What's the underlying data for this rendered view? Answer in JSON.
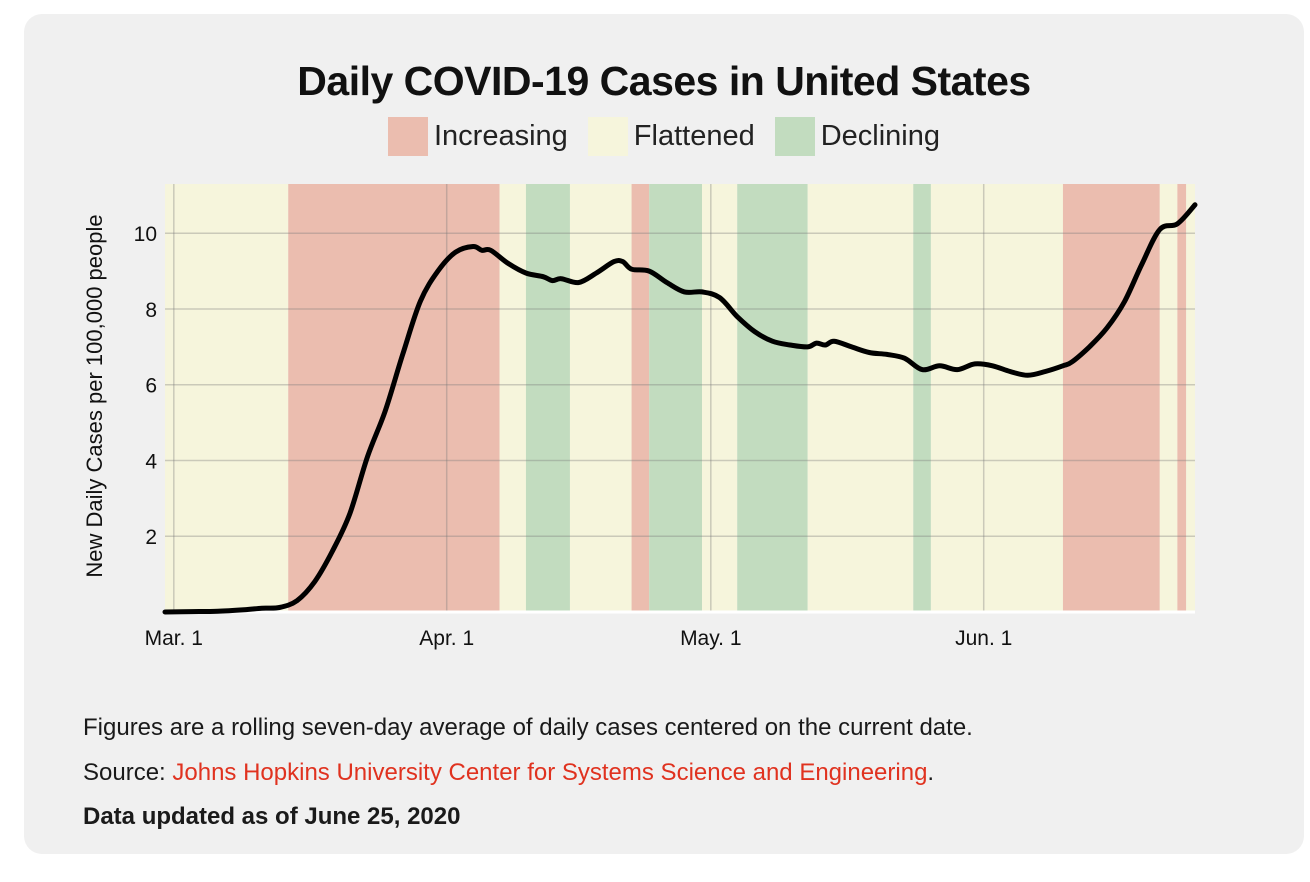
{
  "chart_data": {
    "type": "line",
    "title": "Daily COVID-19 Cases in United States",
    "ylabel": "New Daily Cases per 100,000 people",
    "xlabel": "",
    "x_range": [
      "2020-02-29",
      "2020-06-25"
    ],
    "ylim": [
      0,
      11.3
    ],
    "yticks": [
      2,
      4,
      6,
      8,
      10
    ],
    "xticks": [
      {
        "date": "2020-03-01",
        "label": "Mar. 1"
      },
      {
        "date": "2020-04-01",
        "label": "Apr. 1"
      },
      {
        "date": "2020-05-01",
        "label": "May. 1"
      },
      {
        "date": "2020-06-01",
        "label": "Jun. 1"
      }
    ],
    "grid": true,
    "legend": {
      "position": "top-center",
      "entries": [
        {
          "label": "Increasing",
          "color": "#ebbdaf"
        },
        {
          "label": "Flattened",
          "color": "#f6f5dc"
        },
        {
          "label": "Declining",
          "color": "#c2dcbf"
        }
      ]
    },
    "line_color": "#000000",
    "trend_bands": [
      {
        "start": "2020-02-29",
        "end": "2020-03-14",
        "trend": "Flattened"
      },
      {
        "start": "2020-03-14",
        "end": "2020-04-07",
        "trend": "Increasing"
      },
      {
        "start": "2020-04-07",
        "end": "2020-04-10",
        "trend": "Flattened"
      },
      {
        "start": "2020-04-10",
        "end": "2020-04-15",
        "trend": "Declining"
      },
      {
        "start": "2020-04-15",
        "end": "2020-04-22",
        "trend": "Flattened"
      },
      {
        "start": "2020-04-22",
        "end": "2020-04-24",
        "trend": "Increasing"
      },
      {
        "start": "2020-04-24",
        "end": "2020-04-30",
        "trend": "Declining"
      },
      {
        "start": "2020-04-30",
        "end": "2020-05-04",
        "trend": "Flattened"
      },
      {
        "start": "2020-05-04",
        "end": "2020-05-12",
        "trend": "Declining"
      },
      {
        "start": "2020-05-12",
        "end": "2020-05-24",
        "trend": "Flattened"
      },
      {
        "start": "2020-05-24",
        "end": "2020-05-26",
        "trend": "Declining"
      },
      {
        "start": "2020-05-26",
        "end": "2020-06-10",
        "trend": "Flattened"
      },
      {
        "start": "2020-06-10",
        "end": "2020-06-21",
        "trend": "Increasing"
      },
      {
        "start": "2020-06-21",
        "end": "2020-06-23",
        "trend": "Flattened"
      },
      {
        "start": "2020-06-23",
        "end": "2020-06-24",
        "trend": "Increasing"
      },
      {
        "start": "2020-06-24",
        "end": "2020-06-25",
        "trend": "Flattened"
      }
    ],
    "series": [
      {
        "values": [
          {
            "date": "2020-02-29",
            "y": 0.0
          },
          {
            "date": "2020-03-03",
            "y": 0.01
          },
          {
            "date": "2020-03-06",
            "y": 0.02
          },
          {
            "date": "2020-03-09",
            "y": 0.06
          },
          {
            "date": "2020-03-11",
            "y": 0.1
          },
          {
            "date": "2020-03-13",
            "y": 0.12
          },
          {
            "date": "2020-03-15",
            "y": 0.3
          },
          {
            "date": "2020-03-17",
            "y": 0.8
          },
          {
            "date": "2020-03-19",
            "y": 1.6
          },
          {
            "date": "2020-03-21",
            "y": 2.6
          },
          {
            "date": "2020-03-23",
            "y": 4.1
          },
          {
            "date": "2020-03-25",
            "y": 5.3
          },
          {
            "date": "2020-03-27",
            "y": 6.8
          },
          {
            "date": "2020-03-29",
            "y": 8.2
          },
          {
            "date": "2020-03-31",
            "y": 9.0
          },
          {
            "date": "2020-04-02",
            "y": 9.5
          },
          {
            "date": "2020-04-04",
            "y": 9.65
          },
          {
            "date": "2020-04-05",
            "y": 9.55
          },
          {
            "date": "2020-04-06",
            "y": 9.55
          },
          {
            "date": "2020-04-08",
            "y": 9.2
          },
          {
            "date": "2020-04-10",
            "y": 8.95
          },
          {
            "date": "2020-04-12",
            "y": 8.85
          },
          {
            "date": "2020-04-13",
            "y": 8.75
          },
          {
            "date": "2020-04-14",
            "y": 8.8
          },
          {
            "date": "2020-04-16",
            "y": 8.7
          },
          {
            "date": "2020-04-18",
            "y": 8.95
          },
          {
            "date": "2020-04-20",
            "y": 9.25
          },
          {
            "date": "2020-04-21",
            "y": 9.25
          },
          {
            "date": "2020-04-22",
            "y": 9.05
          },
          {
            "date": "2020-04-24",
            "y": 9.0
          },
          {
            "date": "2020-04-26",
            "y": 8.7
          },
          {
            "date": "2020-04-28",
            "y": 8.45
          },
          {
            "date": "2020-04-30",
            "y": 8.45
          },
          {
            "date": "2020-05-02",
            "y": 8.3
          },
          {
            "date": "2020-05-04",
            "y": 7.8
          },
          {
            "date": "2020-05-06",
            "y": 7.4
          },
          {
            "date": "2020-05-08",
            "y": 7.15
          },
          {
            "date": "2020-05-10",
            "y": 7.05
          },
          {
            "date": "2020-05-12",
            "y": 7.0
          },
          {
            "date": "2020-05-13",
            "y": 7.1
          },
          {
            "date": "2020-05-14",
            "y": 7.05
          },
          {
            "date": "2020-05-15",
            "y": 7.15
          },
          {
            "date": "2020-05-17",
            "y": 7.0
          },
          {
            "date": "2020-05-19",
            "y": 6.85
          },
          {
            "date": "2020-05-21",
            "y": 6.8
          },
          {
            "date": "2020-05-23",
            "y": 6.7
          },
          {
            "date": "2020-05-25",
            "y": 6.4
          },
          {
            "date": "2020-05-27",
            "y": 6.5
          },
          {
            "date": "2020-05-29",
            "y": 6.4
          },
          {
            "date": "2020-05-31",
            "y": 6.55
          },
          {
            "date": "2020-06-02",
            "y": 6.5
          },
          {
            "date": "2020-06-04",
            "y": 6.35
          },
          {
            "date": "2020-06-06",
            "y": 6.25
          },
          {
            "date": "2020-06-08",
            "y": 6.35
          },
          {
            "date": "2020-06-10",
            "y": 6.5
          },
          {
            "date": "2020-06-11",
            "y": 6.6
          },
          {
            "date": "2020-06-13",
            "y": 7.0
          },
          {
            "date": "2020-06-15",
            "y": 7.5
          },
          {
            "date": "2020-06-17",
            "y": 8.2
          },
          {
            "date": "2020-06-19",
            "y": 9.2
          },
          {
            "date": "2020-06-21",
            "y": 10.1
          },
          {
            "date": "2020-06-23",
            "y": 10.25
          },
          {
            "date": "2020-06-25",
            "y": 10.75
          }
        ]
      }
    ]
  },
  "footer": {
    "note": "Figures are a rolling seven-day average of daily cases centered on the current date.",
    "source_prefix": "Source: ",
    "source_link": "Johns Hopkins University Center for Systems Science and Engineering",
    "source_suffix": ".",
    "updated": "Data updated as of June 25, 2020"
  }
}
